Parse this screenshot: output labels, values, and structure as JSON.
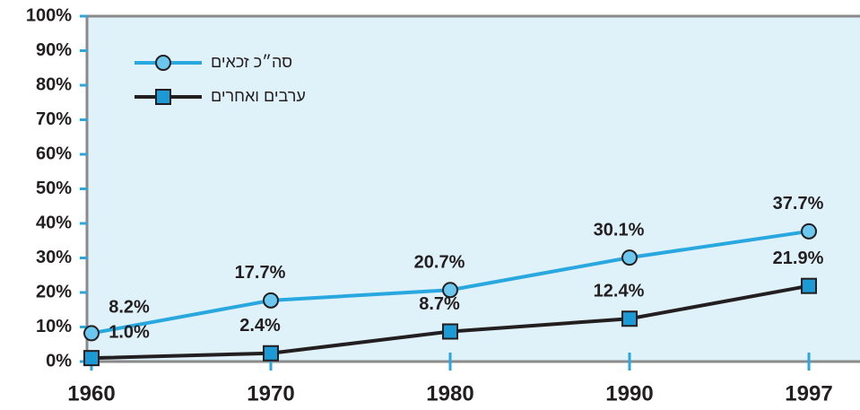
{
  "chart_data": {
    "type": "line",
    "categories": [
      "1960",
      "1970",
      "1980",
      "1990",
      "1997"
    ],
    "series": [
      {
        "name": "סה״כ זכאים",
        "color": "#29a8e0",
        "marker": "circle",
        "values": [
          8.2,
          17.7,
          20.7,
          30.1,
          37.7
        ],
        "value_labels": [
          "8.2%",
          "17.7%",
          "20.7%",
          "30.1%",
          "37.7%"
        ]
      },
      {
        "name": "ערבים ואחרים",
        "color": "#231f20",
        "marker": "square",
        "values": [
          1.0,
          2.4,
          8.7,
          12.4,
          21.9
        ],
        "value_labels": [
          "1.0%",
          "2.4%",
          "8.7%",
          "12.4%",
          "21.9%"
        ]
      }
    ],
    "ylim": [
      0,
      100
    ],
    "yticks": [
      {
        "value": 0,
        "label": "0%"
      },
      {
        "value": 10,
        "label": "10%"
      },
      {
        "value": 20,
        "label": "20%"
      },
      {
        "value": 30,
        "label": "30%"
      },
      {
        "value": 40,
        "label": "40%"
      },
      {
        "value": 50,
        "label": "50%"
      },
      {
        "value": 60,
        "label": "60%"
      },
      {
        "value": 70,
        "label": "70%"
      },
      {
        "value": 80,
        "label": "80%"
      },
      {
        "value": 90,
        "label": "90%"
      },
      {
        "value": 100,
        "label": "100%"
      }
    ],
    "legend": "top-left"
  }
}
